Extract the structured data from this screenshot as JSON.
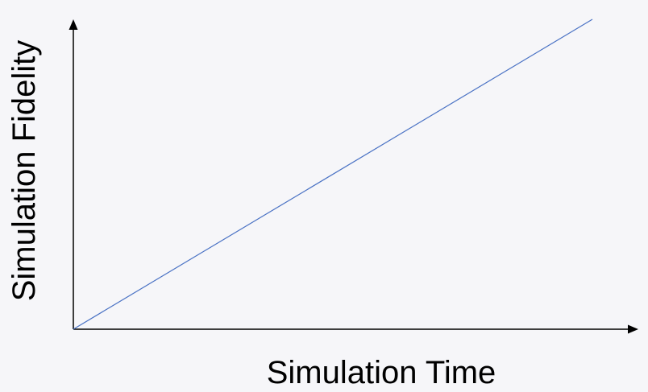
{
  "chart_data": {
    "type": "line",
    "xlabel": "Simulation Time",
    "ylabel": "Simulation Fidelity",
    "xlim": [
      0,
      1
    ],
    "ylim": [
      0,
      1
    ],
    "grid": false,
    "series": [
      {
        "x": [
          0,
          0.92
        ],
        "y": [
          0,
          1
        ],
        "color": "#4a72c4"
      }
    ],
    "axis_color": "#000000",
    "background": "#f6f6f9"
  }
}
